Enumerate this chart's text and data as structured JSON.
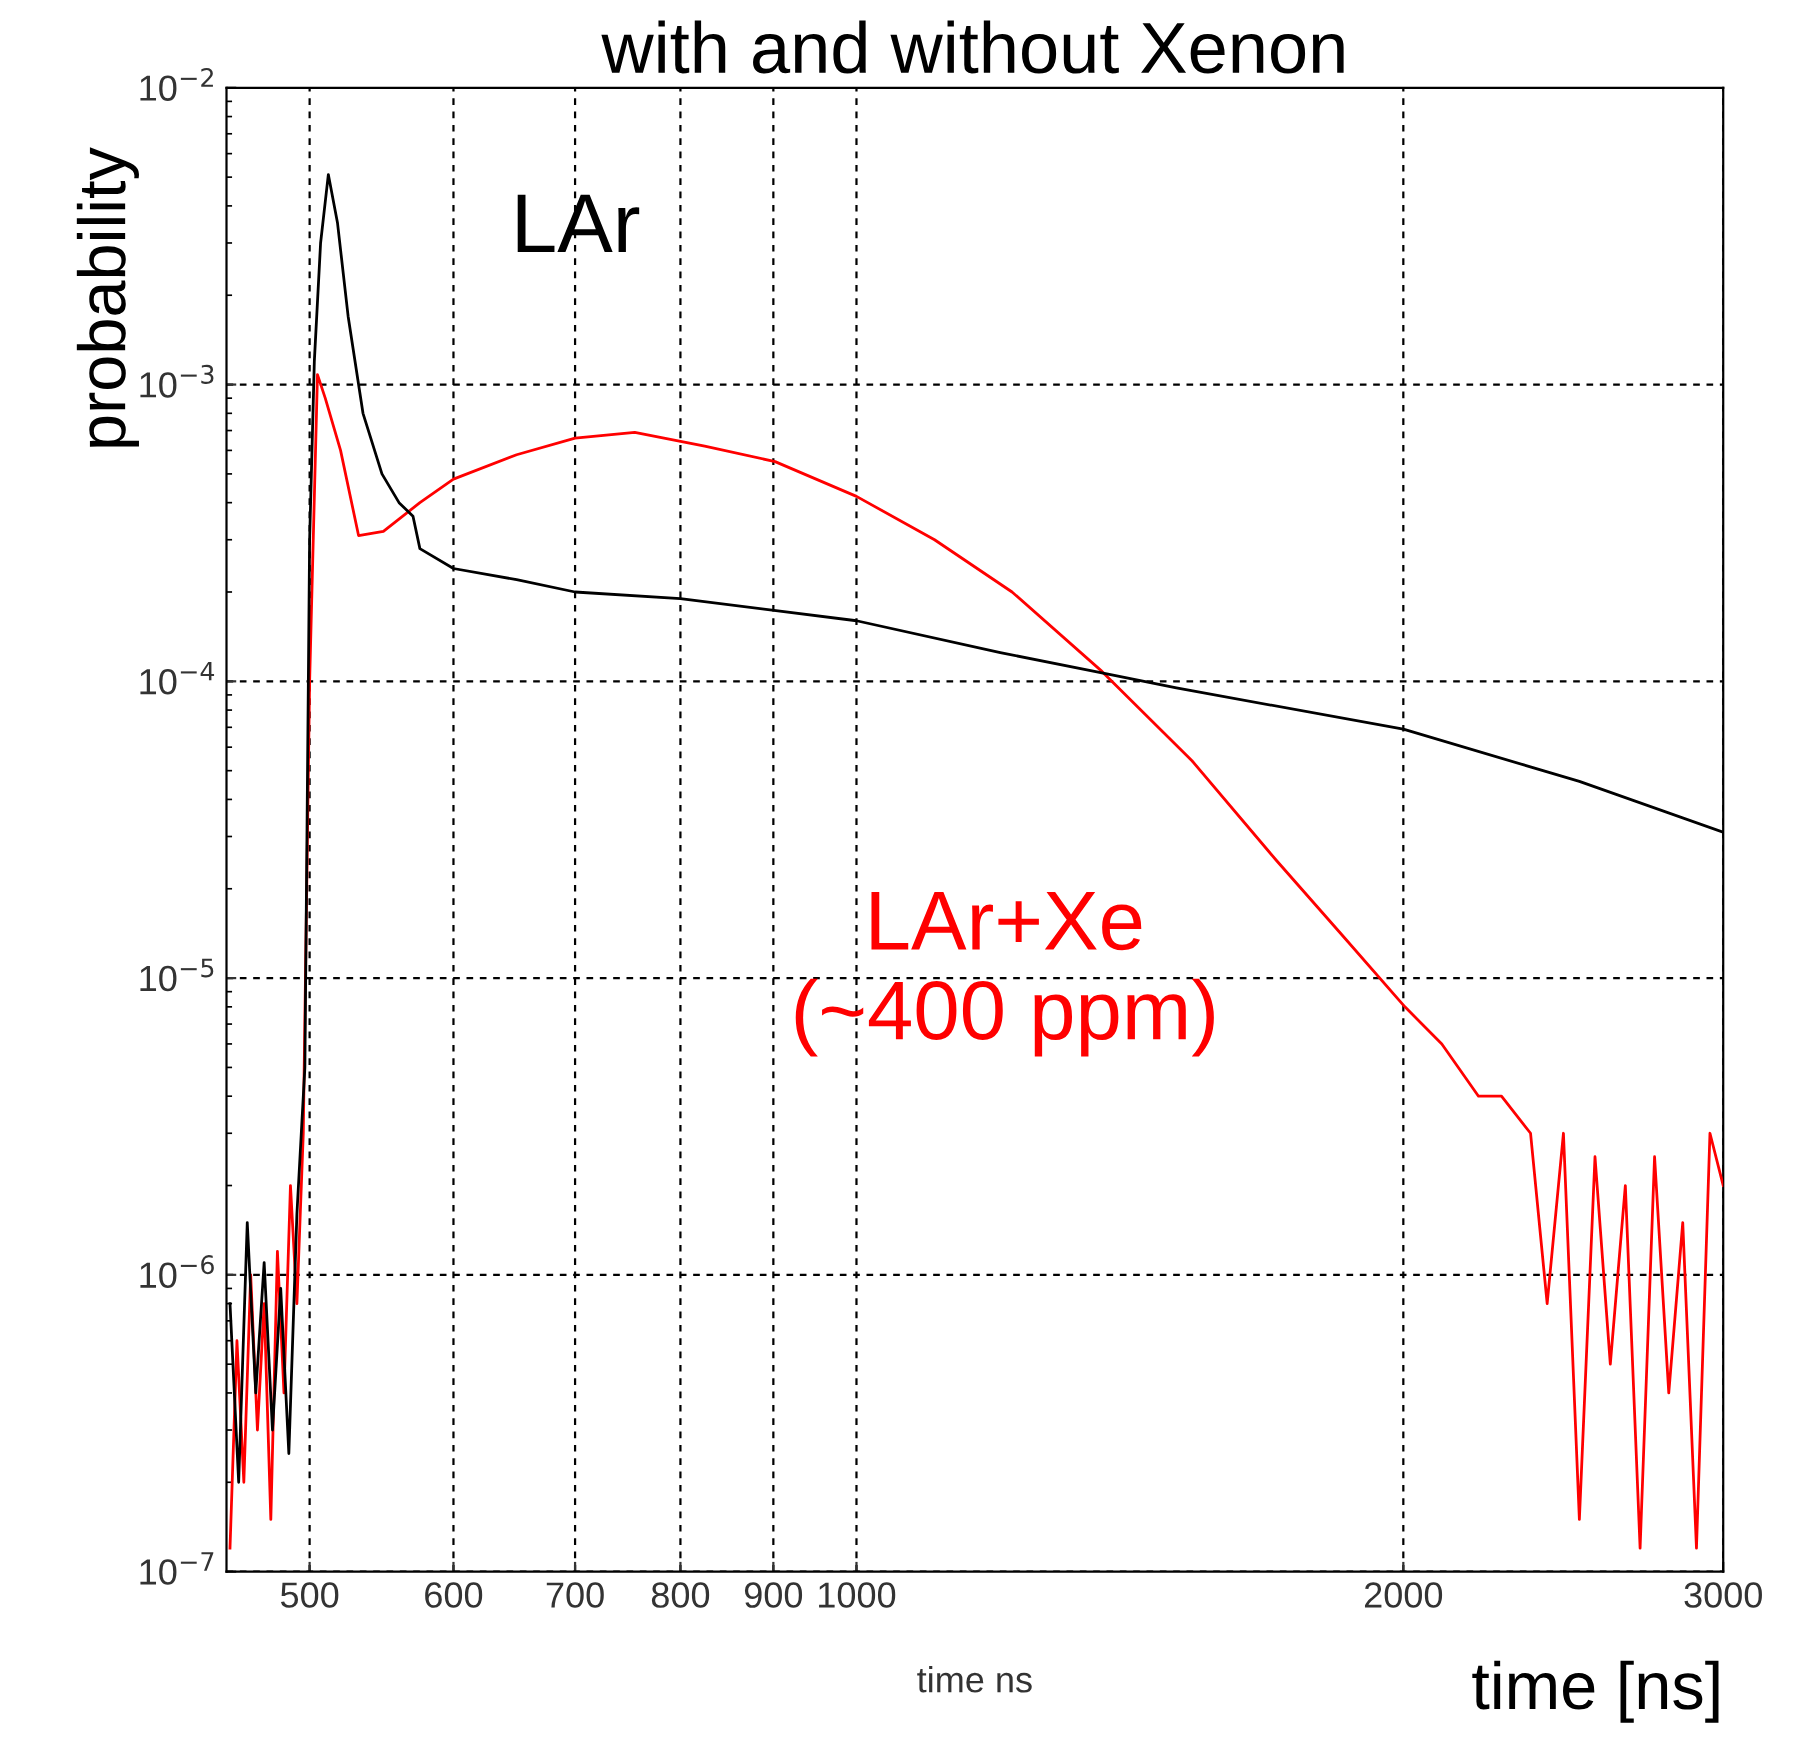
{
  "chart_data": {
    "type": "line",
    "title": "with and without Xenon",
    "xlabel": "time [ns]",
    "ylabel": "probability",
    "annotations": [
      "time ns"
    ],
    "log": "xy",
    "grid": true,
    "legend": false,
    "xlim": [
      450,
      3000
    ],
    "xticks": [
      500,
      600,
      700,
      800,
      900,
      1000,
      2000,
      3000
    ],
    "ylim": [
      1e-07,
      0.01
    ],
    "yticks": [
      {
        "value": 1e-07,
        "label": "10$^{−7}$"
      },
      {
        "value": 1e-06,
        "label": "10$^{−6}$"
      },
      {
        "value": 1e-05,
        "label": "10$^{−5}$"
      },
      {
        "value": 0.0001,
        "label": "10$^{−4}$"
      },
      {
        "value": 0.001,
        "label": "10$^{−3}$"
      },
      {
        "value": 0.01,
        "label": "10$^{−2}$"
      }
    ],
    "series": [
      {
        "name": "LAr",
        "color": "#000000",
        "x": [
          452,
          457,
          462,
          467,
          472,
          477,
          482,
          487,
          492,
          497,
          500,
          503,
          507,
          512,
          518,
          525,
          535,
          548,
          560,
          570,
          575,
          600,
          650,
          700,
          800,
          1000,
          1200,
          1352,
          1500,
          2000,
          2500,
          3000
        ],
        "values": [
          8e-07,
          2e-07,
          1.5e-06,
          4e-07,
          1.1e-06,
          3e-07,
          9e-07,
          2.5e-07,
          1.6e-06,
          5e-06,
          0.0003,
          0.0012,
          0.003,
          0.0051,
          0.0035,
          0.0017,
          0.0008,
          0.0005,
          0.0004,
          0.00036,
          0.00028,
          0.00024,
          0.00022,
          0.0002,
          0.00019,
          0.00016,
          0.000125,
          0.000108,
          9.5e-05,
          6.9e-05,
          4.6e-05,
          3.1e-05
        ]
      },
      {
        "name": "LAr+Xe\n(~400 ppm)",
        "color": "#ff0000",
        "x": [
          452,
          456,
          460,
          464,
          468,
          472,
          476,
          480,
          484,
          488,
          492,
          496,
          500,
          505,
          510,
          520,
          532,
          549,
          575,
          600,
          650,
          700,
          755,
          825,
          902,
          1000,
          1104,
          1218,
          1365,
          1530,
          1702,
          1850,
          2004,
          2100,
          2200,
          2265,
          2350,
          2400,
          2450,
          2500,
          2550,
          2600,
          2650,
          2700,
          2750,
          2800,
          2850,
          2900,
          2950,
          3000
        ],
        "values": [
          1.2e-07,
          6e-07,
          2e-07,
          1e-06,
          3e-07,
          8e-07,
          1.5e-07,
          1.2e-06,
          4e-07,
          2e-06,
          8e-07,
          3e-06,
          0.0001,
          0.00108,
          0.0009,
          0.0006,
          0.00031,
          0.00032,
          0.0004,
          0.00048,
          0.00058,
          0.00066,
          0.00069,
          0.00062,
          0.00055,
          0.00042,
          0.0003,
          0.0002,
          0.000108,
          5.4e-05,
          2.5e-05,
          1.4e-05,
          8e-06,
          6e-06,
          4e-06,
          4e-06,
          3e-06,
          8e-07,
          3e-06,
          1.5e-07,
          2.5e-06,
          5e-07,
          2e-06,
          1.2e-07,
          2.5e-06,
          4e-07,
          1.5e-06,
          1.2e-07,
          3e-06,
          2e-06
        ]
      }
    ]
  }
}
